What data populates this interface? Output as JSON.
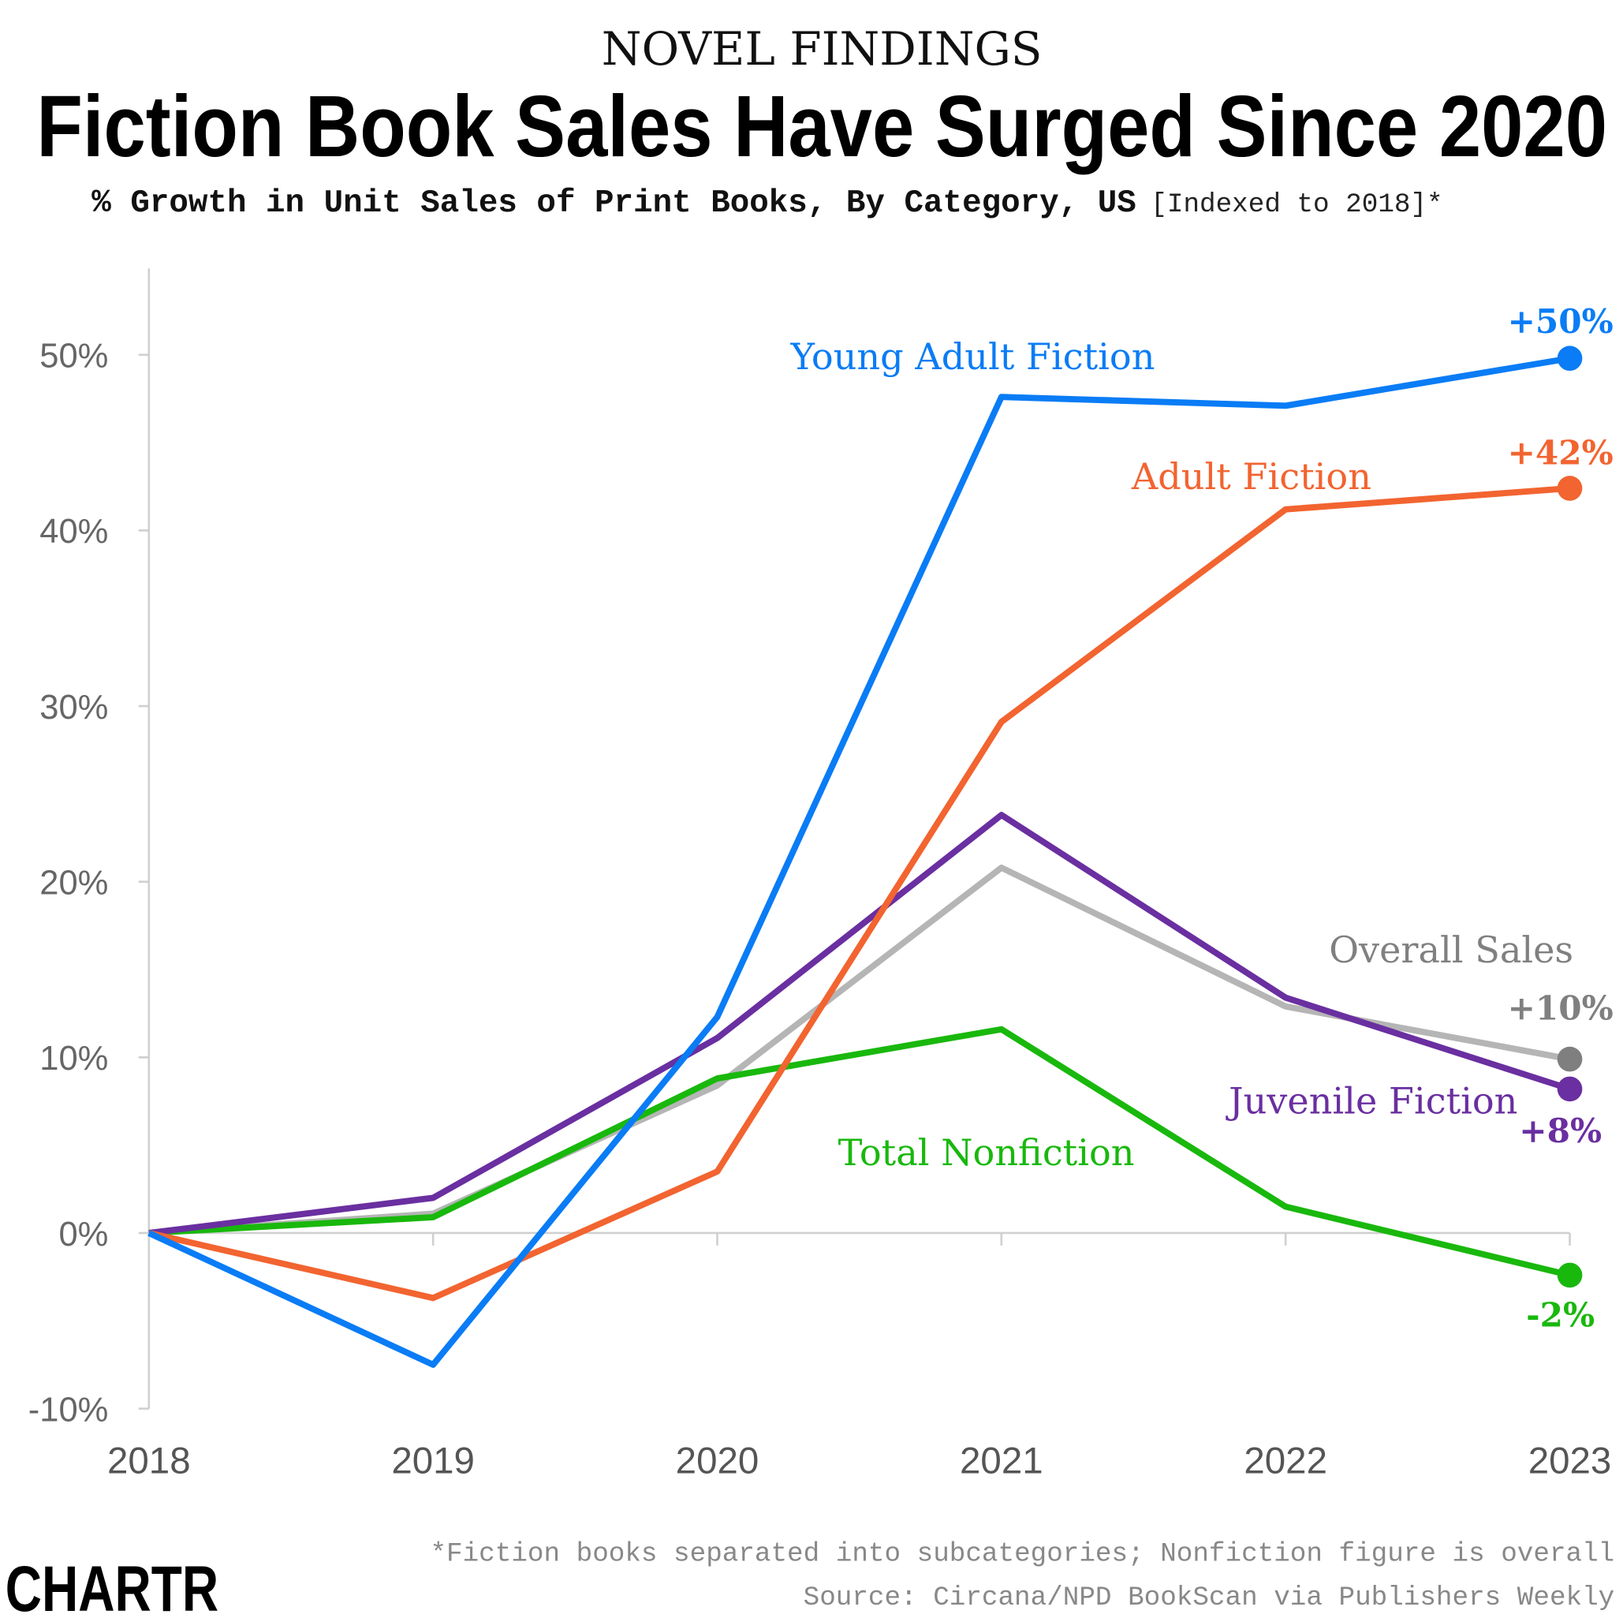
{
  "header": {
    "kicker": "NOVEL FINDINGS",
    "title": "Fiction Book Sales Have Surged Since 2020",
    "subtitle": "% Growth in Unit Sales of Print Books, By Category, US",
    "subtitle_note": "[Indexed to 2018]*"
  },
  "footer": {
    "note": "*Fiction books separated into subcategories; Nonfiction figure is overall",
    "source": "Source: Circana/NPD BookScan via Publishers Weekly",
    "logo": "CHARTR"
  },
  "chart_data": {
    "type": "line",
    "title": "Fiction Book Sales Have Surged Since 2020",
    "x": [
      "2018",
      "2019",
      "2020",
      "2021",
      "2022",
      "2023"
    ],
    "ylim": [
      -10,
      55
    ],
    "yticks": [
      -10,
      0,
      10,
      20,
      30,
      40,
      50
    ],
    "ytick_labels": [
      "-10%",
      "0%",
      "10%",
      "20%",
      "30%",
      "40%",
      "50%"
    ],
    "grid": false,
    "series": [
      {
        "name": "Overall Sales",
        "color": "#b5b5b5",
        "dot_color": "#7f7f7f",
        "values": [
          0,
          1.1,
          8.4,
          20.8,
          12.9,
          9.9
        ],
        "end_label": "+10%"
      },
      {
        "name": "Total Nonfiction",
        "color": "#19b80d",
        "dot_color": "#19b80d",
        "values": [
          0,
          0.9,
          8.8,
          11.6,
          1.5,
          -2.4
        ],
        "end_label": "-2%"
      },
      {
        "name": "Juvenile Fiction",
        "color": "#6a2fa0",
        "dot_color": "#6a2fa0",
        "values": [
          0,
          2.0,
          11.1,
          23.8,
          13.4,
          8.2
        ],
        "end_label": "+8%"
      },
      {
        "name": "Adult Fiction",
        "color": "#f26430",
        "dot_color": "#f26430",
        "values": [
          0,
          -3.7,
          3.5,
          29.1,
          41.2,
          42.4
        ],
        "end_label": "+42%"
      },
      {
        "name": "Young Adult Fiction",
        "color": "#0a7cf5",
        "dot_color": "#0a7cf5",
        "values": [
          0,
          -7.5,
          12.3,
          47.6,
          47.1,
          49.8
        ],
        "end_label": "+50%"
      }
    ]
  }
}
